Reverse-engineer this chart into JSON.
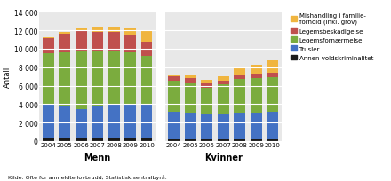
{
  "years": [
    2004,
    2005,
    2006,
    2007,
    2008,
    2009,
    2010
  ],
  "menn": {
    "annen": [
      300,
      300,
      300,
      300,
      300,
      300,
      300
    ],
    "trusler": [
      3700,
      3500,
      3200,
      3400,
      3700,
      3700,
      3700
    ],
    "legemsfornarmelse": [
      5500,
      5800,
      6200,
      6000,
      5800,
      5600,
      5200
    ],
    "legemsbeskadigelse": [
      1600,
      2000,
      2200,
      2100,
      2000,
      1800,
      1600
    ],
    "mishandling": [
      100,
      200,
      400,
      600,
      600,
      800,
      1200
    ]
  },
  "kvinner": {
    "annen": [
      200,
      200,
      200,
      200,
      200,
      200,
      200
    ],
    "trusler": [
      3000,
      2900,
      2700,
      2800,
      2900,
      2900,
      3000
    ],
    "legemsfornarmelse": [
      3300,
      3200,
      2900,
      3100,
      3600,
      3700,
      3700
    ],
    "legemsbeskadigelse": [
      500,
      500,
      400,
      400,
      500,
      500,
      500
    ],
    "mishandling": [
      200,
      300,
      400,
      500,
      800,
      1000,
      1300
    ]
  },
  "colors": {
    "annen": "#1a1a1a",
    "trusler": "#4472c4",
    "legemsfornarmelse": "#7bac3e",
    "legemsbeskadigelse": "#c0504d",
    "mishandling": "#f0b53f"
  },
  "ylim": [
    0,
    14000
  ],
  "yticks": [
    0,
    2000,
    4000,
    6000,
    8000,
    10000,
    12000,
    14000
  ],
  "ylabel": "Antall",
  "source": "Kilde: Ofte for anmeldte lovbrudd, Statistisk sentralbyrå.",
  "legend_labels": [
    "Mishandling i familie-\nforhold (inkl. grov)",
    "Legemsbeskadigelse",
    "Legemsfornærmelse",
    "Trusler",
    "Annen voldskriminalitet"
  ],
  "group_labels": [
    "Menn",
    "Kvinner"
  ]
}
